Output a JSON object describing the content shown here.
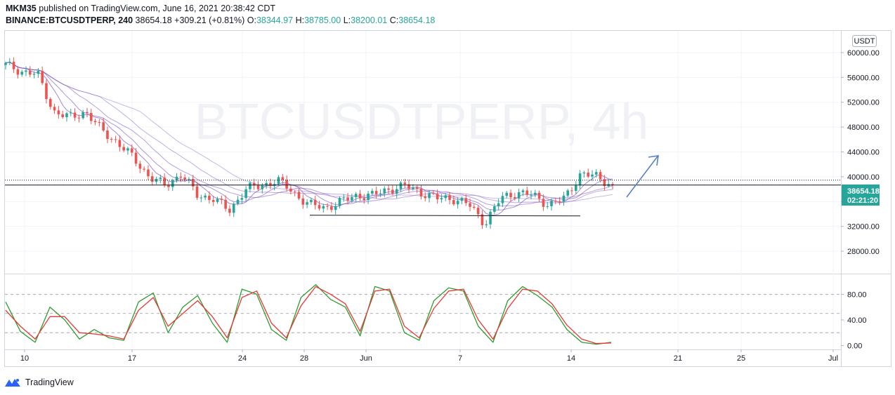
{
  "header": {
    "publisher": "MKM35",
    "published_text": "published on TradingView.com, June 16, 2021 20:38:42 CDT",
    "symbol": "BINANCE:BTCUSDTPERP, 240",
    "last": "38654.18",
    "change": "+309.21 (+0.81%)",
    "o_label": "O:",
    "o_value": "38344.97",
    "h_label": "H:",
    "h_value": "38785.00",
    "l_label": "L:",
    "l_value": "38200.01",
    "c_label": "C:",
    "c_value": "38654.18"
  },
  "currency_badge": "USDT",
  "watermark": "BTCUSDTPERP, 4h",
  "price_label": {
    "price": "38654.18",
    "countdown": "02:21:20",
    "color": "#26a69a"
  },
  "footer": {
    "brand": "TradingView"
  },
  "colors": {
    "up": "#26a69a",
    "down": "#ef5350",
    "ribbon": "#7e57c2",
    "stoch_k": "#2e9b2e",
    "stoch_d": "#e53935",
    "arrow": "#5b7fc7"
  },
  "chart_data": [
    {
      "type": "candlestick",
      "title": "",
      "ylim": [
        24500,
        63500
      ],
      "y_ticks": [
        "60000.00",
        "56000.00",
        "52000.00",
        "48000.00",
        "44000.00",
        "40000.00",
        "36000.00",
        "32000.00",
        "28000.00"
      ],
      "x_ticks": [
        "10",
        "17",
        "24",
        "28",
        "Jun",
        "7",
        "14",
        "21",
        "25",
        "Jul"
      ],
      "grid": true,
      "series": [
        {
          "type": "close",
          "x": [
            "May 9",
            "May 10",
            "May 11",
            "May 12",
            "May 13",
            "May 14",
            "May 15",
            "May 16",
            "May 17",
            "May 18",
            "May 19",
            "May 20",
            "May 21",
            "May 22",
            "May 23",
            "May 24",
            "May 25",
            "May 26",
            "May 27",
            "May 28",
            "May 29",
            "May 30",
            "May 31",
            "Jun 1",
            "Jun 2",
            "Jun 3",
            "Jun 4",
            "Jun 5",
            "Jun 6",
            "Jun 7",
            "Jun 8",
            "Jun 9",
            "Jun 10",
            "Jun 11",
            "Jun 12",
            "Jun 13",
            "Jun 14",
            "Jun 15",
            "Jun 16"
          ],
          "values": [
            58000,
            57000,
            56500,
            50500,
            49500,
            50500,
            47500,
            45500,
            43000,
            40000,
            38500,
            40500,
            37000,
            36500,
            34500,
            38000,
            38500,
            39500,
            37500,
            35500,
            35000,
            36000,
            37000,
            37000,
            38000,
            38500,
            37500,
            36500,
            36500,
            35500,
            32500,
            36500,
            37500,
            37000,
            35500,
            36500,
            40500,
            40000,
            38654
          ]
        }
      ],
      "horizontal_lines": [
        38654.18
      ],
      "support_line": 33800
    },
    {
      "type": "line",
      "title": "",
      "ylim": [
        -5,
        110
      ],
      "y_ticks": [
        "80.00",
        "40.00",
        "0.00"
      ],
      "levels": [
        80,
        50,
        20
      ],
      "series": [
        {
          "name": "",
          "values": [
            68,
            22,
            5,
            60,
            40,
            10,
            25,
            12,
            8,
            68,
            82,
            20,
            60,
            78,
            35,
            5,
            88,
            80,
            25,
            8,
            75,
            95,
            72,
            60,
            15,
            92,
            85,
            20,
            8,
            70,
            90,
            85,
            30,
            5,
            70,
            92,
            78,
            60,
            25,
            5,
            2,
            5
          ]
        },
        {
          "name": "",
          "values": [
            55,
            30,
            10,
            45,
            45,
            20,
            18,
            15,
            10,
            55,
            75,
            30,
            50,
            70,
            45,
            12,
            75,
            85,
            35,
            12,
            62,
            92,
            80,
            65,
            22,
            85,
            88,
            30,
            12,
            58,
            85,
            88,
            40,
            10,
            58,
            88,
            85,
            65,
            32,
            10,
            3,
            4
          ]
        }
      ]
    }
  ]
}
